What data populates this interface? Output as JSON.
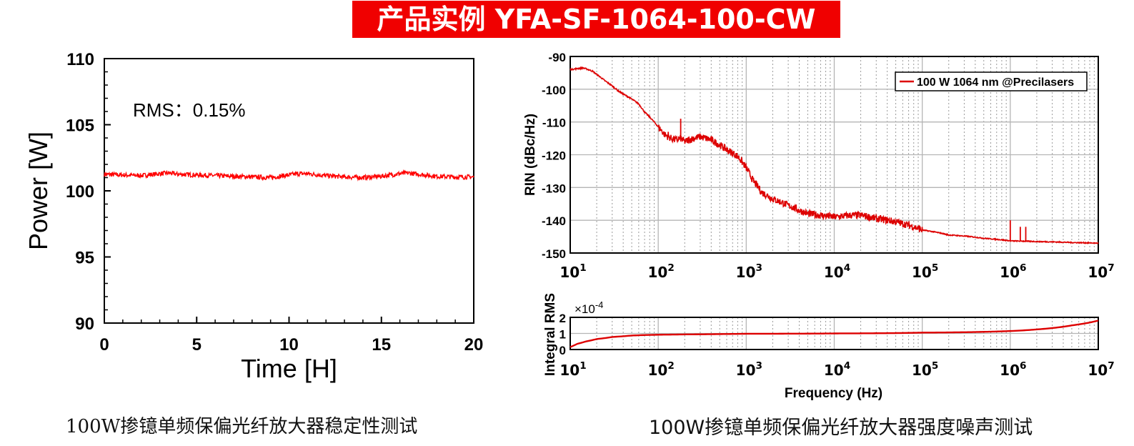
{
  "banner": {
    "title": "产品实例 YFA-SF-1064-100-CW",
    "bg_color": "#f00000"
  },
  "captions": {
    "left": "100W掺镱单频保偏光纤放大器稳定性测试",
    "right": "100W掺镱单频保偏光纤放大器强度噪声测试"
  },
  "chart_data": [
    {
      "type": "line",
      "title": "",
      "xlabel": "Time [H]",
      "ylabel": "Power [W]",
      "xlim": [
        0,
        20
      ],
      "ylim": [
        90,
        110
      ],
      "xticks": [
        0,
        5,
        10,
        15,
        20
      ],
      "yticks": [
        90,
        95,
        100,
        105,
        110
      ],
      "annotation": "RMS：0.15%",
      "color": "#ff0000",
      "grid": false,
      "series": [
        {
          "x": [
            0,
            1,
            2,
            3,
            3.5,
            4,
            5,
            6,
            7,
            8,
            9,
            10,
            10.5,
            11,
            12,
            13,
            14,
            15,
            16,
            16.5,
            17,
            18,
            19,
            20
          ],
          "y": [
            101.25,
            101.2,
            101.15,
            101.3,
            101.35,
            101.25,
            101.2,
            101.15,
            101.1,
            101.05,
            101.0,
            101.2,
            101.3,
            101.3,
            101.15,
            101.05,
            101.0,
            101.1,
            101.3,
            101.35,
            101.25,
            101.1,
            101.05,
            101.05
          ]
        }
      ]
    },
    {
      "type": "line",
      "title": "",
      "xlabel": "",
      "ylabel": "RIN (dBc/Hz)",
      "xscale": "log",
      "xlim": [
        10,
        10000000
      ],
      "ylim": [
        -150,
        -90
      ],
      "yticks": [
        -150,
        -140,
        -130,
        -120,
        -110,
        -100,
        -90
      ],
      "xtick_labels": [
        "10^1",
        "10^2",
        "10^3",
        "10^4",
        "10^5",
        "10^6",
        "10^7"
      ],
      "grid": true,
      "legend_position": "top-right",
      "color": "#dd0000",
      "series": [
        {
          "name": "100 W 1064 nm @Precilasers",
          "x": [
            10,
            12,
            14,
            16,
            18,
            20,
            25,
            30,
            35,
            40,
            50,
            60,
            70,
            80,
            90,
            100,
            120,
            140,
            160,
            180,
            200,
            250,
            300,
            400,
            500,
            600,
            800,
            1000,
            1200,
            1500,
            2000,
            3000,
            4000,
            5000,
            7000,
            10000,
            15000,
            20000,
            30000,
            50000,
            70000,
            100000,
            200000,
            500000,
            1000000,
            2000000,
            5000000,
            10000000
          ],
          "y": [
            -94,
            -93.7,
            -93.5,
            -94,
            -94.5,
            -95.5,
            -97.5,
            -99,
            -100.5,
            -101.5,
            -103,
            -104.5,
            -107,
            -108.5,
            -110,
            -111.5,
            -114,
            -115,
            -115.5,
            -115,
            -116,
            -115,
            -114.5,
            -115.5,
            -117,
            -118.5,
            -120.5,
            -124,
            -128,
            -131.5,
            -133.5,
            -135.5,
            -137,
            -138,
            -138.5,
            -139,
            -138.5,
            -138.5,
            -139.5,
            -140.5,
            -141.5,
            -143,
            -144.5,
            -145.5,
            -146.3,
            -146.5,
            -146.8,
            -147
          ]
        }
      ],
      "spikes": [
        {
          "x": 180,
          "y": -109
        },
        {
          "x": 130,
          "y": -113
        },
        {
          "x": 1000000,
          "y": -140
        },
        {
          "x": 1300000,
          "y": -142
        },
        {
          "x": 1500000,
          "y": -142
        }
      ]
    },
    {
      "type": "line",
      "title": "",
      "xlabel": "Frequency (Hz)",
      "ylabel": "Integral RMS",
      "y_multiplier": "×10^-4",
      "xscale": "log",
      "xlim": [
        10,
        10000000
      ],
      "ylim": [
        0,
        2
      ],
      "yticks": [
        0,
        1,
        2
      ],
      "xtick_labels": [
        "10^1",
        "10^2",
        "10^3",
        "10^4",
        "10^5",
        "10^6",
        "10^7"
      ],
      "grid": true,
      "color": "#dd0000",
      "series": [
        {
          "x": [
            10,
            12,
            15,
            20,
            30,
            50,
            70,
            100,
            200,
            500,
            1000,
            10000,
            100000,
            500000,
            1000000,
            2000000,
            5000000,
            10000000
          ],
          "y": [
            0.15,
            0.35,
            0.5,
            0.65,
            0.78,
            0.87,
            0.9,
            0.92,
            0.94,
            0.96,
            0.98,
            1.0,
            1.05,
            1.1,
            1.15,
            1.25,
            1.5,
            1.8
          ]
        }
      ]
    }
  ]
}
